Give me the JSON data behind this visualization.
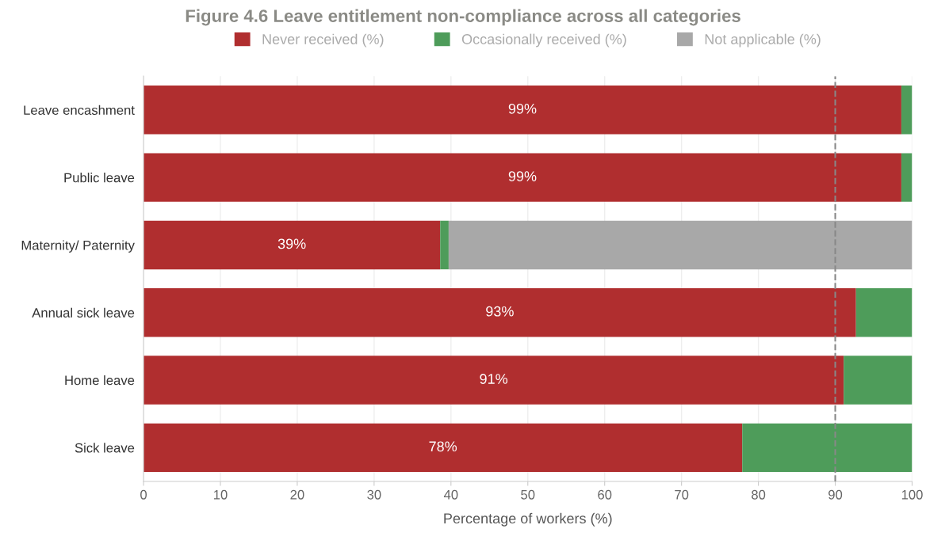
{
  "chart_data": {
    "type": "bar",
    "orientation": "horizontal",
    "stacked": true,
    "title": "Figure 4.6 Leave entitlement non-compliance across all categories",
    "xlabel": "Percentage of workers (%)",
    "categories": [
      "Leave encashment",
      "Public leave",
      "Maternity/ Paternity",
      "Annual sick leave",
      "Home leave",
      "Sick leave"
    ],
    "series": [
      {
        "name": "Never received (%)",
        "color": "#b02e2f",
        "values": [
          98.6,
          98.6,
          38.6,
          92.7,
          91.1,
          77.9
        ],
        "value_labels": [
          "99%",
          "99%",
          "39%",
          "93%",
          "91%",
          "78%"
        ]
      },
      {
        "name": "Occasionally received (%)",
        "color": "#4e9c5a",
        "values": [
          1.4,
          1.4,
          1.1,
          7.3,
          8.9,
          22.1
        ]
      },
      {
        "name": "Not applicable (%)",
        "color": "#a8a8a8",
        "values": [
          0,
          0,
          60.3,
          0,
          0,
          0
        ]
      }
    ],
    "xlim": [
      0,
      100
    ],
    "xticks": [
      0,
      10,
      20,
      30,
      40,
      50,
      60,
      70,
      80,
      90,
      100
    ],
    "ref_lines": [
      {
        "axis": "x",
        "value": 90,
        "color": "#888888",
        "line_style": "dashed"
      }
    ],
    "grid": "x",
    "legend": "top"
  }
}
